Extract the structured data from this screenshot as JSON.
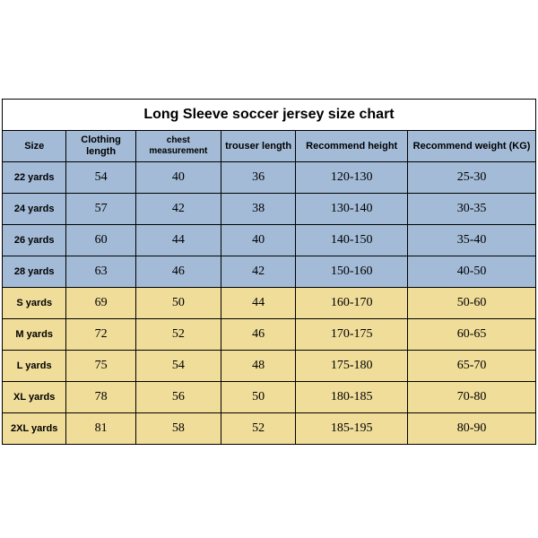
{
  "chart": {
    "title": "Long Sleeve soccer jersey size chart",
    "columns": [
      "Size",
      "Clothing length",
      "chest measurement",
      "trouser length",
      "Recommend height",
      "Recommend weight (KG)"
    ],
    "column_widths_pct": [
      12,
      13,
      16,
      14,
      21,
      24
    ],
    "colors": {
      "header_bg": "#a3bbd7",
      "group_a_bg": "#a3bbd7",
      "group_b_bg": "#f0dd9a",
      "border": "#000000",
      "title_bg": "#ffffff"
    },
    "header_fontsize": 11,
    "title_fontsize": 16,
    "value_fontsize": 14,
    "rows": [
      {
        "group": "a",
        "cells": [
          "22 yards",
          "54",
          "40",
          "36",
          "120-130",
          "25-30"
        ]
      },
      {
        "group": "a",
        "cells": [
          "24 yards",
          "57",
          "42",
          "38",
          "130-140",
          "30-35"
        ]
      },
      {
        "group": "a",
        "cells": [
          "26 yards",
          "60",
          "44",
          "40",
          "140-150",
          "35-40"
        ]
      },
      {
        "group": "a",
        "cells": [
          "28 yards",
          "63",
          "46",
          "42",
          "150-160",
          "40-50"
        ]
      },
      {
        "group": "b",
        "cells": [
          "S yards",
          "69",
          "50",
          "44",
          "160-170",
          "50-60"
        ]
      },
      {
        "group": "b",
        "cells": [
          "M yards",
          "72",
          "52",
          "46",
          "170-175",
          "60-65"
        ]
      },
      {
        "group": "b",
        "cells": [
          "L yards",
          "75",
          "54",
          "48",
          "175-180",
          "65-70"
        ]
      },
      {
        "group": "b",
        "cells": [
          "XL yards",
          "78",
          "56",
          "50",
          "180-185",
          "70-80"
        ]
      },
      {
        "group": "b",
        "cells": [
          "2XL yards",
          "81",
          "58",
          "52",
          "185-195",
          "80-90"
        ]
      }
    ]
  }
}
